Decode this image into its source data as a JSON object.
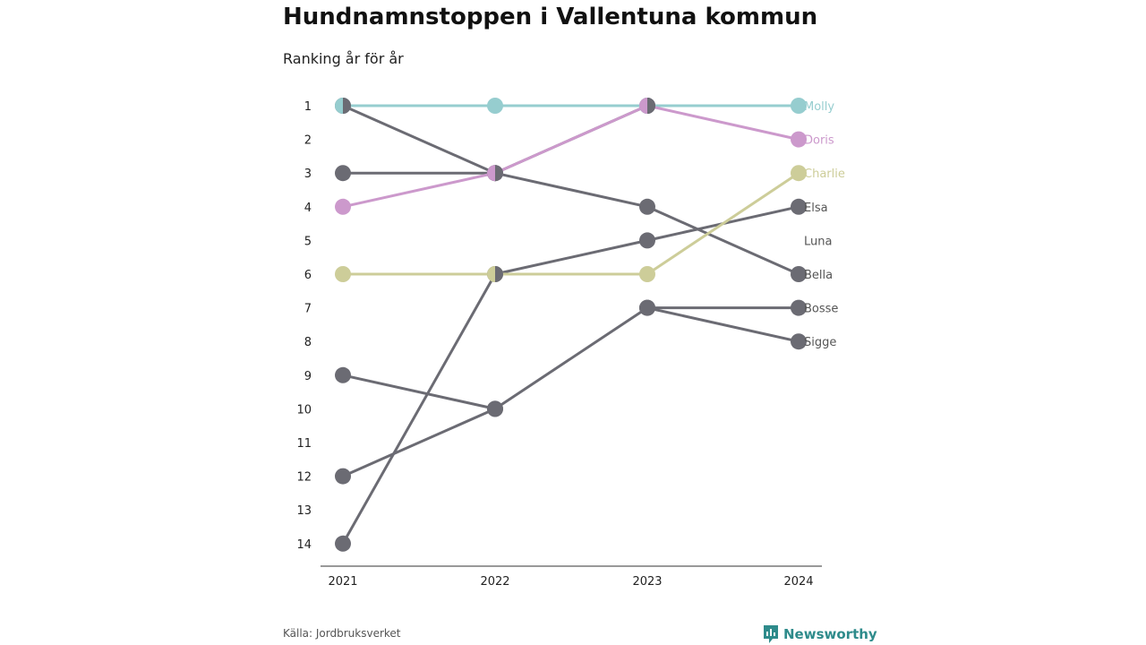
{
  "header": {
    "title": "Hundnamnstoppen i Vallentuna kommun",
    "subtitle": "Ranking år för år"
  },
  "footer": {
    "source": "Källa: Jordbruksverket",
    "brand": "Newsworthy",
    "brand_icon": "newsworthy-logo-icon"
  },
  "colors": {
    "gray": "#6b6b73",
    "teal": "#96cdcf",
    "pink": "#cc99cc",
    "olive": "#cdcd99",
    "axis": "#333333",
    "brand": "#2e8b8b"
  },
  "chart_data": {
    "type": "line",
    "title": "Hundnamnstoppen i Vallentuna kommun",
    "subtitle": "Ranking år för år",
    "x": [
      "2021",
      "2022",
      "2023",
      "2024"
    ],
    "y_ticks": [
      1,
      2,
      3,
      4,
      5,
      6,
      7,
      8,
      9,
      10,
      11,
      12,
      13,
      14
    ],
    "ylim": [
      1,
      14
    ],
    "y_inverted": true,
    "grid": false,
    "series": [
      {
        "name": "Molly",
        "color": "#96cdcf",
        "ranks": [
          1,
          1,
          1,
          1
        ]
      },
      {
        "name": "Doris",
        "color": "#cc99cc",
        "ranks": [
          4,
          3,
          1,
          2
        ]
      },
      {
        "name": "Charlie",
        "color": "#cdcd99",
        "ranks": [
          6,
          6,
          6,
          3
        ]
      },
      {
        "name": "Elsa",
        "color": "#6b6b73",
        "ranks": [
          14,
          6,
          5,
          4
        ]
      },
      {
        "name": "Luna",
        "color": "#6b6b73",
        "ranks": [
          3,
          3,
          1,
          null
        ]
      },
      {
        "name": "Bella",
        "color": "#6b6b73",
        "ranks": [
          1,
          3,
          4,
          6
        ]
      },
      {
        "name": "Bosse",
        "color": "#6b6b73",
        "ranks": [
          null,
          null,
          7,
          7
        ]
      },
      {
        "name": "Sigge",
        "color": "#6b6b73",
        "ranks": [
          12,
          10,
          7,
          8
        ]
      },
      {
        "name": "",
        "color": "#6b6b73",
        "ranks": [
          9,
          10,
          null,
          null
        ]
      }
    ]
  }
}
